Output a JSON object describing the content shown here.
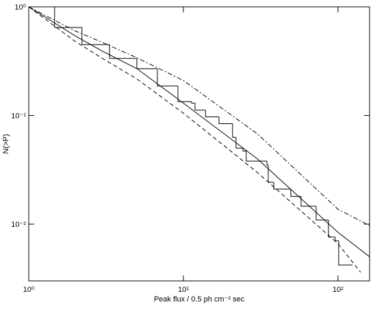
{
  "chart_data": {
    "type": "line",
    "xlabel": "Peak flux / 0.5 ph cm⁻² sec",
    "ylabel": "N(>P)",
    "xscale": "log",
    "yscale": "log",
    "xlim": [
      1,
      160
    ],
    "ylim": [
      0.003,
      1
    ],
    "xticks": [
      {
        "value": 1,
        "label": "10⁰"
      },
      {
        "value": 10,
        "label": "10¹"
      },
      {
        "value": 100,
        "label": "10²"
      }
    ],
    "yticks": [
      {
        "value": 0.01,
        "label": "10⁻²"
      },
      {
        "value": 0.1,
        "label": "10⁻¹"
      },
      {
        "value": 1,
        "label": "10⁰"
      }
    ],
    "series": [
      {
        "style": "solid",
        "color": "#000000",
        "x": [
          1,
          2,
          3,
          5,
          10,
          30,
          100,
          160
        ],
        "values": [
          1,
          0.54,
          0.39,
          0.27,
          0.13,
          0.04,
          0.0084,
          0.005
        ]
      },
      {
        "style": "dashdot",
        "color": "#000000",
        "x": [
          1,
          2,
          3,
          5,
          10,
          30,
          100,
          160
        ],
        "values": [
          1,
          0.6,
          0.47,
          0.34,
          0.21,
          0.068,
          0.0137,
          0.0097
        ]
      },
      {
        "style": "dashed",
        "color": "#000000",
        "x": [
          1,
          2,
          3,
          5,
          10,
          30,
          100,
          140
        ],
        "values": [
          1,
          0.48,
          0.335,
          0.217,
          0.105,
          0.03,
          0.0066,
          0.0036
        ]
      },
      {
        "style": "step",
        "color": "#000000",
        "x": [
          1,
          1.47,
          2.21,
          3.33,
          5.0,
          6.79,
          9.22,
          11.3,
          11.9,
          13.9,
          17.0,
          20.8,
          21.9,
          24.3,
          25.5,
          34.7,
          35.4,
          38.4,
          49.5,
          57.7,
          72.2,
          86.7,
          95.9,
          101,
          124
        ],
        "values": [
          1,
          0.646,
          0.449,
          0.335,
          0.269,
          0.187,
          0.134,
          0.13,
          0.112,
          0.097,
          0.084,
          0.063,
          0.05,
          0.047,
          0.038,
          0.035,
          0.0243,
          0.021,
          0.018,
          0.0146,
          0.0109,
          0.0076,
          0.007,
          0.0042,
          0.0042
        ]
      }
    ]
  }
}
